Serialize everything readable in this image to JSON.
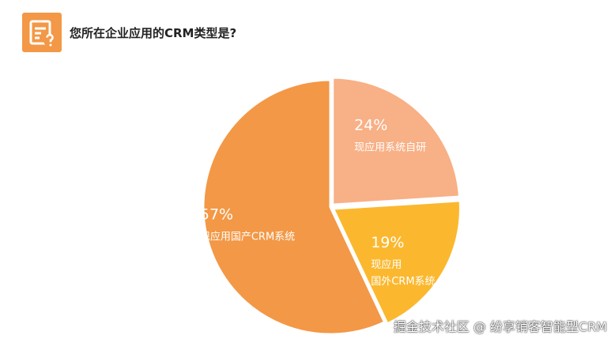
{
  "header": {
    "title": "您所在企业应用的CRM类型是?",
    "icon": "survey-question-icon",
    "icon_color": "#f39846"
  },
  "chart_data": {
    "type": "pie",
    "title": "您所在企业应用的CRM类型是?",
    "slices": [
      {
        "value": 24,
        "value_label": "24%",
        "label_lines": [
          "现应用系统自研"
        ],
        "color": "#f8b086",
        "exploded": true
      },
      {
        "value": 19,
        "value_label": "19%",
        "label_lines": [
          "现应用",
          "国外CRM系统"
        ],
        "color": "#fbb82f",
        "exploded": true
      },
      {
        "value": 57,
        "value_label": "57%",
        "label_lines": [
          "现应用国产CRM系统"
        ],
        "color": "#f39846",
        "exploded": false
      }
    ],
    "start_angle_deg": 0,
    "direction": "clockwise",
    "legend": "none"
  },
  "watermark": {
    "text": "掘金技术社区 @ 纷享销客智能型CRM"
  }
}
